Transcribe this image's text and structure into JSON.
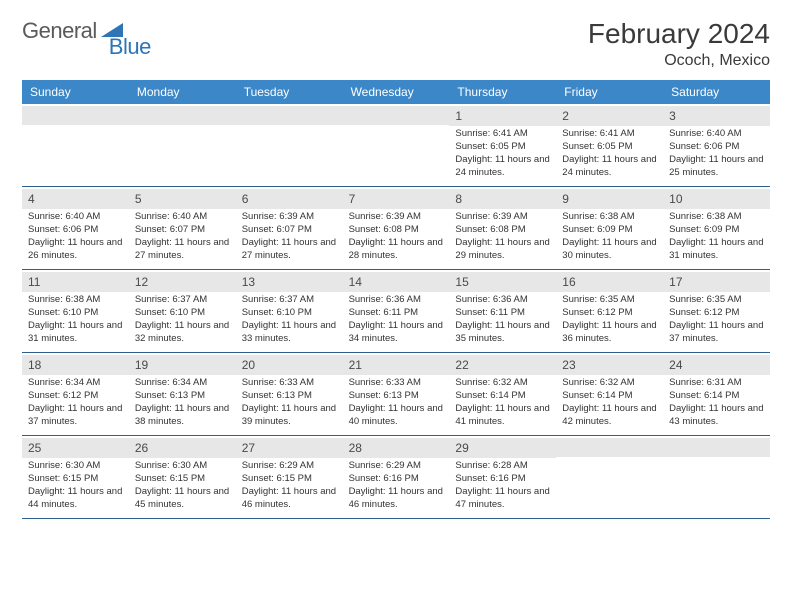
{
  "logo": {
    "text1": "General",
    "text2": "Blue",
    "shape_color": "#2f75b5"
  },
  "title": "February 2024",
  "location": "Ococh, Mexico",
  "colors": {
    "header_bg": "#3b87c8",
    "header_text": "#ffffff",
    "daynum_bg": "#e7e7e7",
    "border": "#2f5f8f",
    "text": "#333333"
  },
  "dow": [
    "Sunday",
    "Monday",
    "Tuesday",
    "Wednesday",
    "Thursday",
    "Friday",
    "Saturday"
  ],
  "weeks": [
    [
      {
        "n": "",
        "sr": "",
        "ss": "",
        "dl": ""
      },
      {
        "n": "",
        "sr": "",
        "ss": "",
        "dl": ""
      },
      {
        "n": "",
        "sr": "",
        "ss": "",
        "dl": ""
      },
      {
        "n": "",
        "sr": "",
        "ss": "",
        "dl": ""
      },
      {
        "n": "1",
        "sr": "Sunrise: 6:41 AM",
        "ss": "Sunset: 6:05 PM",
        "dl": "Daylight: 11 hours and 24 minutes."
      },
      {
        "n": "2",
        "sr": "Sunrise: 6:41 AM",
        "ss": "Sunset: 6:05 PM",
        "dl": "Daylight: 11 hours and 24 minutes."
      },
      {
        "n": "3",
        "sr": "Sunrise: 6:40 AM",
        "ss": "Sunset: 6:06 PM",
        "dl": "Daylight: 11 hours and 25 minutes."
      }
    ],
    [
      {
        "n": "4",
        "sr": "Sunrise: 6:40 AM",
        "ss": "Sunset: 6:06 PM",
        "dl": "Daylight: 11 hours and 26 minutes."
      },
      {
        "n": "5",
        "sr": "Sunrise: 6:40 AM",
        "ss": "Sunset: 6:07 PM",
        "dl": "Daylight: 11 hours and 27 minutes."
      },
      {
        "n": "6",
        "sr": "Sunrise: 6:39 AM",
        "ss": "Sunset: 6:07 PM",
        "dl": "Daylight: 11 hours and 27 minutes."
      },
      {
        "n": "7",
        "sr": "Sunrise: 6:39 AM",
        "ss": "Sunset: 6:08 PM",
        "dl": "Daylight: 11 hours and 28 minutes."
      },
      {
        "n": "8",
        "sr": "Sunrise: 6:39 AM",
        "ss": "Sunset: 6:08 PM",
        "dl": "Daylight: 11 hours and 29 minutes."
      },
      {
        "n": "9",
        "sr": "Sunrise: 6:38 AM",
        "ss": "Sunset: 6:09 PM",
        "dl": "Daylight: 11 hours and 30 minutes."
      },
      {
        "n": "10",
        "sr": "Sunrise: 6:38 AM",
        "ss": "Sunset: 6:09 PM",
        "dl": "Daylight: 11 hours and 31 minutes."
      }
    ],
    [
      {
        "n": "11",
        "sr": "Sunrise: 6:38 AM",
        "ss": "Sunset: 6:10 PM",
        "dl": "Daylight: 11 hours and 31 minutes."
      },
      {
        "n": "12",
        "sr": "Sunrise: 6:37 AM",
        "ss": "Sunset: 6:10 PM",
        "dl": "Daylight: 11 hours and 32 minutes."
      },
      {
        "n": "13",
        "sr": "Sunrise: 6:37 AM",
        "ss": "Sunset: 6:10 PM",
        "dl": "Daylight: 11 hours and 33 minutes."
      },
      {
        "n": "14",
        "sr": "Sunrise: 6:36 AM",
        "ss": "Sunset: 6:11 PM",
        "dl": "Daylight: 11 hours and 34 minutes."
      },
      {
        "n": "15",
        "sr": "Sunrise: 6:36 AM",
        "ss": "Sunset: 6:11 PM",
        "dl": "Daylight: 11 hours and 35 minutes."
      },
      {
        "n": "16",
        "sr": "Sunrise: 6:35 AM",
        "ss": "Sunset: 6:12 PM",
        "dl": "Daylight: 11 hours and 36 minutes."
      },
      {
        "n": "17",
        "sr": "Sunrise: 6:35 AM",
        "ss": "Sunset: 6:12 PM",
        "dl": "Daylight: 11 hours and 37 minutes."
      }
    ],
    [
      {
        "n": "18",
        "sr": "Sunrise: 6:34 AM",
        "ss": "Sunset: 6:12 PM",
        "dl": "Daylight: 11 hours and 37 minutes."
      },
      {
        "n": "19",
        "sr": "Sunrise: 6:34 AM",
        "ss": "Sunset: 6:13 PM",
        "dl": "Daylight: 11 hours and 38 minutes."
      },
      {
        "n": "20",
        "sr": "Sunrise: 6:33 AM",
        "ss": "Sunset: 6:13 PM",
        "dl": "Daylight: 11 hours and 39 minutes."
      },
      {
        "n": "21",
        "sr": "Sunrise: 6:33 AM",
        "ss": "Sunset: 6:13 PM",
        "dl": "Daylight: 11 hours and 40 minutes."
      },
      {
        "n": "22",
        "sr": "Sunrise: 6:32 AM",
        "ss": "Sunset: 6:14 PM",
        "dl": "Daylight: 11 hours and 41 minutes."
      },
      {
        "n": "23",
        "sr": "Sunrise: 6:32 AM",
        "ss": "Sunset: 6:14 PM",
        "dl": "Daylight: 11 hours and 42 minutes."
      },
      {
        "n": "24",
        "sr": "Sunrise: 6:31 AM",
        "ss": "Sunset: 6:14 PM",
        "dl": "Daylight: 11 hours and 43 minutes."
      }
    ],
    [
      {
        "n": "25",
        "sr": "Sunrise: 6:30 AM",
        "ss": "Sunset: 6:15 PM",
        "dl": "Daylight: 11 hours and 44 minutes."
      },
      {
        "n": "26",
        "sr": "Sunrise: 6:30 AM",
        "ss": "Sunset: 6:15 PM",
        "dl": "Daylight: 11 hours and 45 minutes."
      },
      {
        "n": "27",
        "sr": "Sunrise: 6:29 AM",
        "ss": "Sunset: 6:15 PM",
        "dl": "Daylight: 11 hours and 46 minutes."
      },
      {
        "n": "28",
        "sr": "Sunrise: 6:29 AM",
        "ss": "Sunset: 6:16 PM",
        "dl": "Daylight: 11 hours and 46 minutes."
      },
      {
        "n": "29",
        "sr": "Sunrise: 6:28 AM",
        "ss": "Sunset: 6:16 PM",
        "dl": "Daylight: 11 hours and 47 minutes."
      },
      {
        "n": "",
        "sr": "",
        "ss": "",
        "dl": ""
      },
      {
        "n": "",
        "sr": "",
        "ss": "",
        "dl": ""
      }
    ]
  ]
}
